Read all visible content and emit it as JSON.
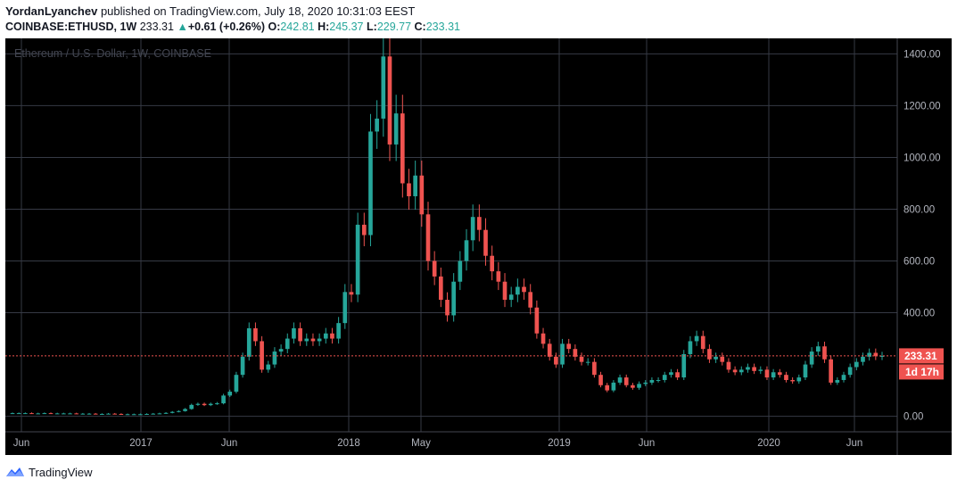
{
  "header": {
    "author": "YordanLyanchev",
    "published_text": "published on TradingView.com, July 18, 2020 10:31:03 EEST",
    "symbol": "COINBASE:ETHUSD, 1W",
    "last": "233.31",
    "change_arrow": "▲",
    "change": "+0.61 (+0.26%)",
    "open_label": "O:",
    "open": "242.81",
    "high_label": "H:",
    "high": "245.37",
    "low_label": "L:",
    "low": "229.77",
    "close_label": "C:",
    "close": "233.31"
  },
  "chart_title": "Ethereum / U.S. Dollar, 1W, COINBASE",
  "price_label": "233.31",
  "countdown_label": "1d 17h",
  "footer": {
    "brand": "TradingView"
  },
  "colors": {
    "up": "#26a69a",
    "down": "#ef5350",
    "background": "#000000",
    "grid": "#363a45",
    "price_line": "#ef5350"
  },
  "chart_data": {
    "type": "candlestick",
    "title": "Ethereum / U.S. Dollar, 1W, COINBASE",
    "x_ticks": [
      "Jun",
      "2017",
      "Jun",
      "2018",
      "May",
      "2019",
      "Jun",
      "2020",
      "Jun"
    ],
    "y_ticks": [
      "1400.00",
      "1200.00",
      "1000.00",
      "800.00",
      "600.00",
      "400.00",
      "0.00"
    ],
    "ylim": [
      -60,
      1460
    ],
    "grid": true,
    "last_price": 233.31,
    "close_series": [
      12,
      12,
      12,
      11,
      11,
      12,
      11,
      11,
      11,
      11,
      10,
      10,
      10,
      9,
      9,
      10,
      9,
      8,
      8,
      8,
      8,
      9,
      10,
      11,
      13,
      17,
      20,
      28,
      44,
      48,
      43,
      48,
      50,
      80,
      95,
      160,
      230,
      340,
      290,
      180,
      200,
      250,
      260,
      300,
      340,
      290,
      300,
      290,
      300,
      320,
      300,
      360,
      480,
      470,
      740,
      700,
      1100,
      1150,
      1390,
      1050,
      1170,
      900,
      850,
      930,
      780,
      600,
      540,
      450,
      390,
      520,
      600,
      680,
      770,
      720,
      620,
      560,
      520,
      450,
      470,
      500,
      480,
      420,
      320,
      280,
      230,
      200,
      280,
      260,
      230,
      210,
      210,
      160,
      120,
      100,
      130,
      150,
      120,
      110,
      125,
      130,
      140,
      140,
      160,
      170,
      150,
      240,
      290,
      310,
      260,
      220,
      230,
      210,
      180,
      170,
      180,
      190,
      175,
      180,
      150,
      170,
      160,
      140,
      135,
      150,
      200,
      250,
      270,
      220,
      130,
      140,
      160,
      190,
      210,
      230,
      245,
      232,
      233
    ]
  }
}
